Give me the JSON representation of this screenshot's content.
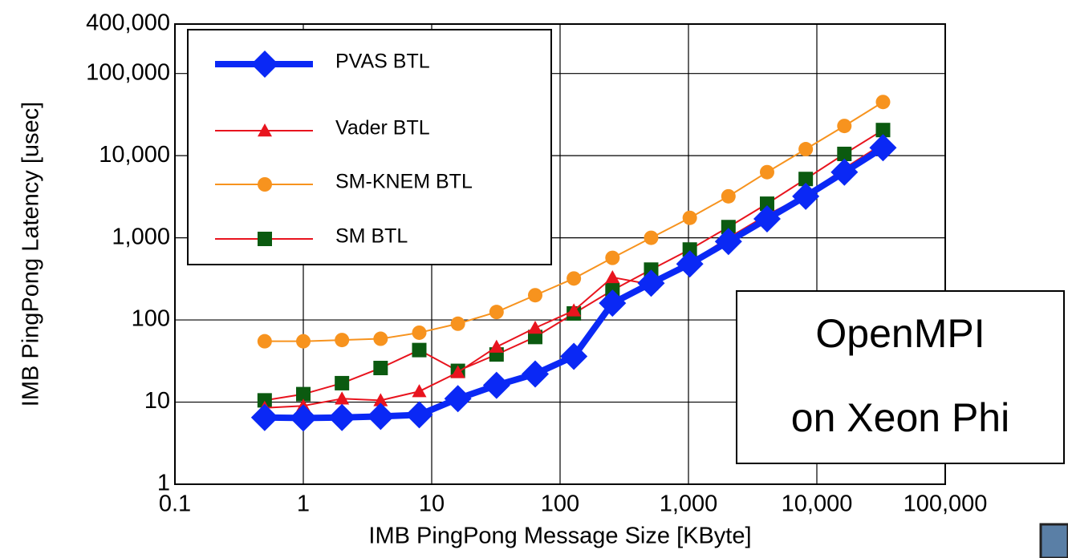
{
  "chart_data": {
    "type": "line",
    "x_label": "IMB PingPong Message Size [KByte]",
    "y_label": "IMB PingPong Latency [usec]",
    "x_log": true,
    "y_log": true,
    "grid": true,
    "legend": "upper left",
    "annotation": [
      "OpenMPI",
      "on Xeon Phi"
    ],
    "x": [
      0.5,
      1,
      2,
      4,
      8,
      16,
      32,
      64,
      128,
      256,
      512,
      1024,
      2048,
      4096,
      8192,
      16384,
      32768
    ],
    "xlim": [
      0.1,
      100000
    ],
    "xticks": [
      0.1,
      1,
      10,
      100,
      {
        "value": 1000,
        "label": "1,000"
      },
      {
        "value": 10000,
        "label": "10,000"
      },
      {
        "value": 100000,
        "label": "100,000"
      }
    ],
    "ylim": [
      1,
      400000
    ],
    "yticks": [
      1,
      10,
      100,
      {
        "value": 1000,
        "label": "1,000"
      },
      {
        "value": 10000,
        "label": "10,000"
      },
      {
        "value": 100000,
        "label": "100,000"
      },
      {
        "value": 400000,
        "label": "400,000"
      }
    ],
    "series": [
      {
        "name": "PVAS BTL",
        "color": "#0a28f5",
        "marker_color": "#0a28f5",
        "marker": "diamond",
        "values": [
          6.5,
          6.4,
          6.5,
          6.7,
          7,
          11,
          16,
          22,
          36,
          160,
          280,
          480,
          900,
          1700,
          3200,
          6300,
          12500
        ]
      },
      {
        "name": "Vader BTL",
        "color": "#e8141e",
        "marker_color": "#e8141e",
        "marker": "triangle",
        "values": [
          8.5,
          9,
          11,
          10.5,
          13.5,
          23,
          47,
          80,
          130,
          330,
          270,
          500,
          1000,
          1900,
          3300,
          7000,
          14000
        ]
      },
      {
        "name": "SM-KNEM BTL",
        "color": "#f7931e",
        "marker_color": "#f7931e",
        "marker": "circle",
        "values": [
          55,
          55,
          57,
          59,
          70,
          90,
          125,
          200,
          320,
          570,
          1000,
          1750,
          3200,
          6300,
          12000,
          23000,
          45000
        ]
      },
      {
        "name": "SM BTL",
        "color": "#e8141e",
        "marker_color": "#0b5a10",
        "marker": "square",
        "values": [
          10.5,
          12.5,
          17,
          26,
          43,
          24,
          38,
          62,
          120,
          230,
          410,
          720,
          1350,
          2600,
          5200,
          10500,
          20500
        ]
      }
    ]
  }
}
